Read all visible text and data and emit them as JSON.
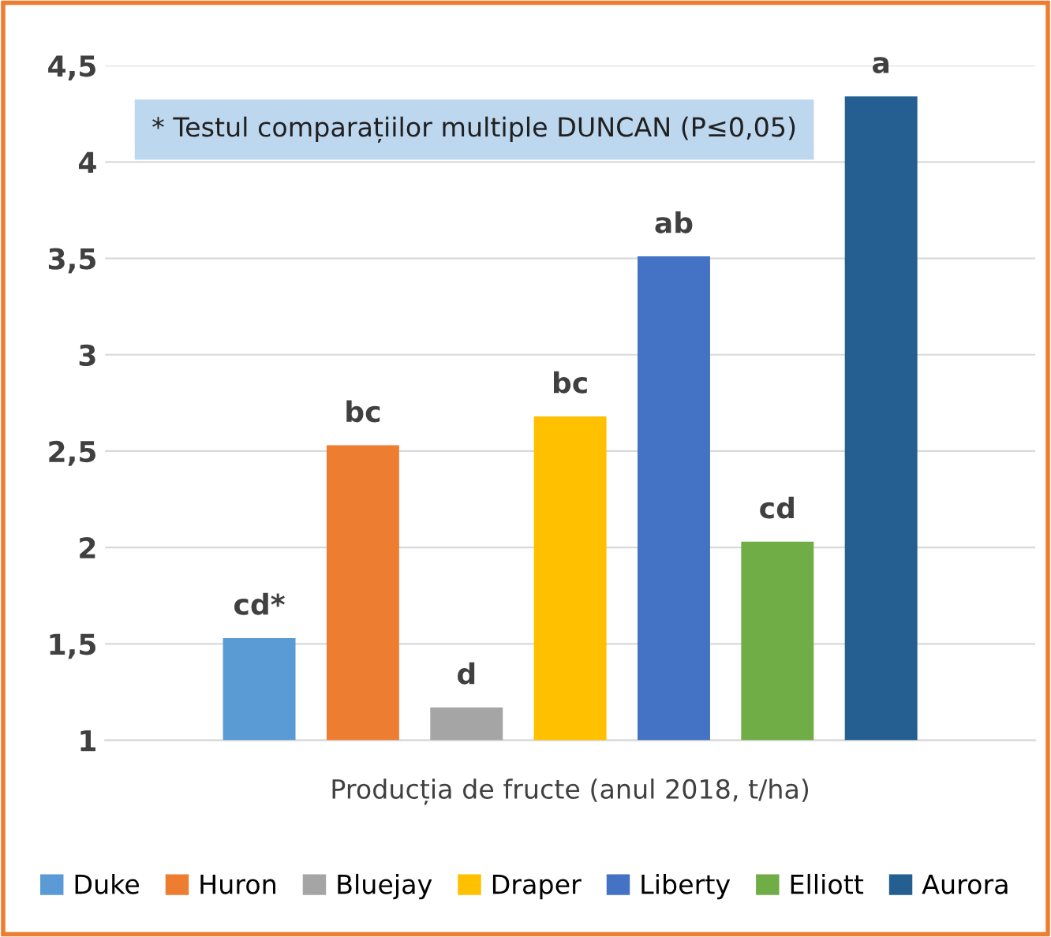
{
  "chart_data": {
    "type": "bar",
    "xlabel": "Producția de fructe (anul 2018, t/ha)",
    "categories": [
      null
    ],
    "series": [
      {
        "name": "Duke",
        "color": "#5b9bd5",
        "values": [
          1.53
        ],
        "value_labels": [
          "cd*"
        ]
      },
      {
        "name": "Huron",
        "color": "#ed7d31",
        "values": [
          2.53
        ],
        "value_labels": [
          "bc"
        ]
      },
      {
        "name": "Bluejay",
        "color": "#a5a5a5",
        "values": [
          1.17
        ],
        "value_labels": [
          "d"
        ]
      },
      {
        "name": "Draper",
        "color": "#ffc000",
        "values": [
          2.68
        ],
        "value_labels": [
          "bc"
        ]
      },
      {
        "name": "Liberty",
        "color": "#4472c4",
        "values": [
          3.51
        ],
        "value_labels": [
          "ab"
        ]
      },
      {
        "name": "Elliott",
        "color": "#70ad47",
        "values": [
          2.03
        ],
        "value_labels": [
          "cd"
        ]
      },
      {
        "name": "Aurora",
        "color": "#255e91",
        "values": [
          4.34
        ],
        "value_labels": [
          "a"
        ]
      }
    ],
    "ylim": [
      1,
      4.5
    ],
    "yticks": [
      1,
      {
        "value": 1.5,
        "label": "1,5"
      },
      2,
      {
        "value": 2.5,
        "label": "2,5"
      },
      3,
      {
        "value": 3.5,
        "label": "3,5"
      },
      4,
      {
        "value": 4.5,
        "label": "4,5"
      }
    ],
    "grid": "y",
    "legend": "bottom",
    "annotations": [
      "* Testul comparațiilor multiple DUNCAN (P≤0,05)"
    ]
  }
}
